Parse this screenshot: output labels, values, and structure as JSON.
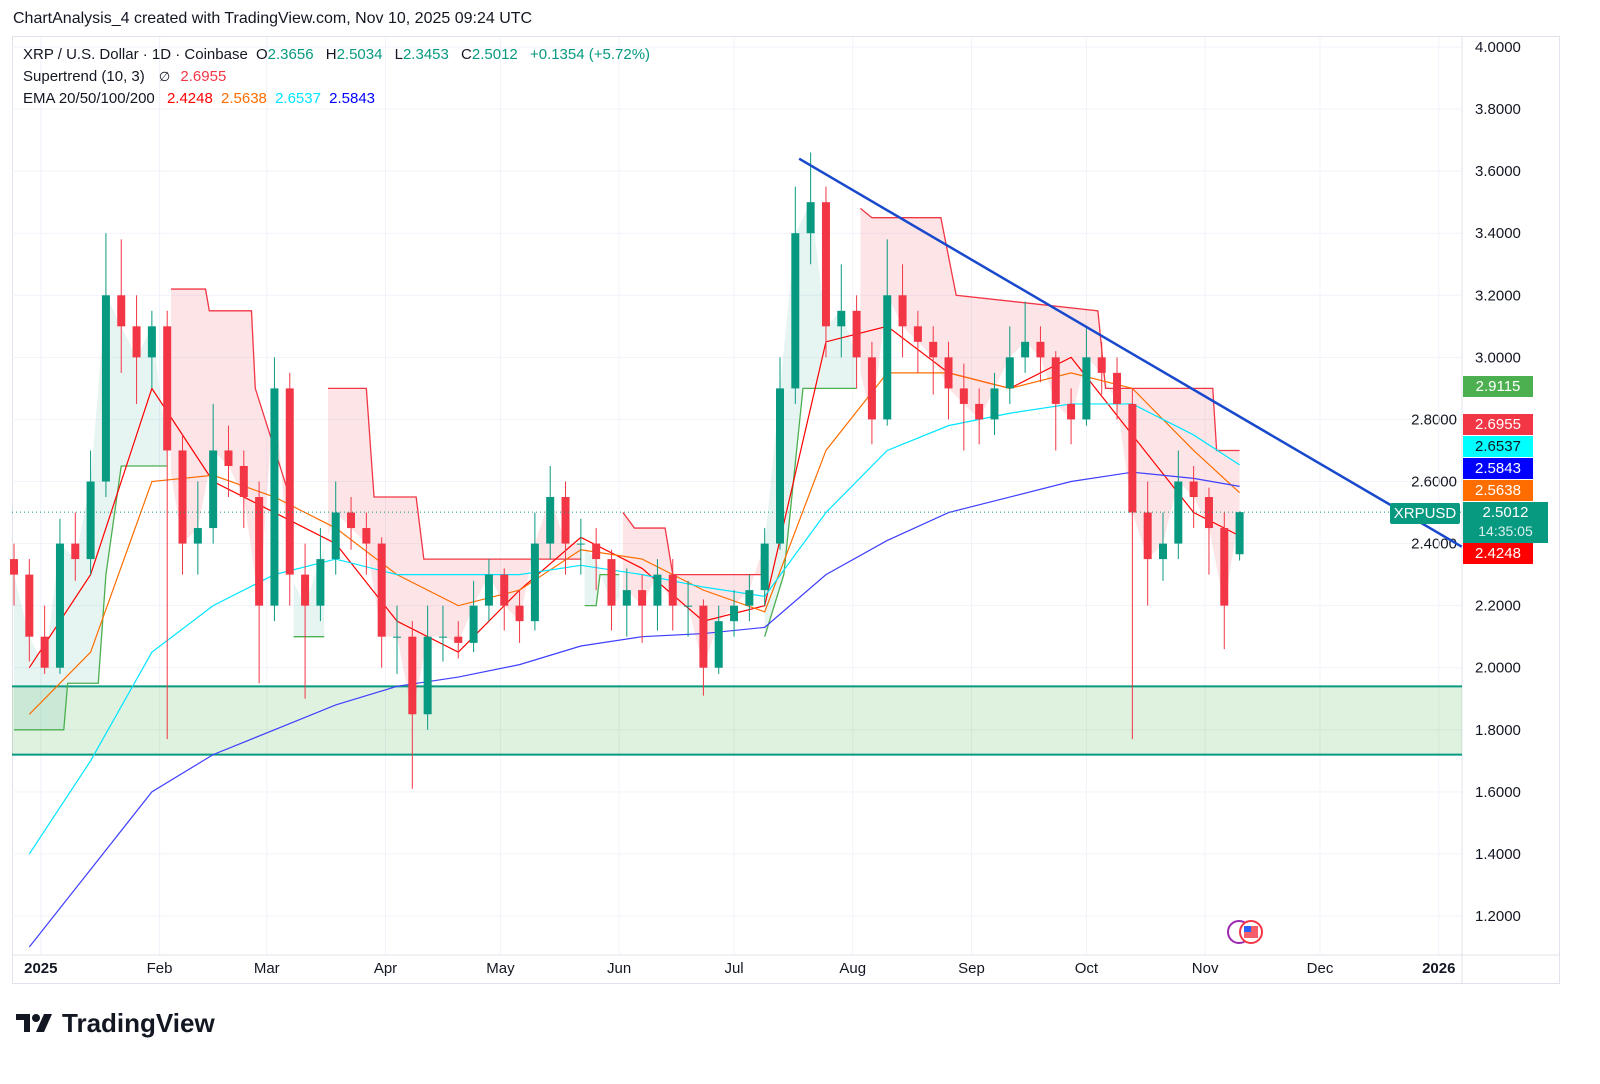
{
  "caption": "ChartAnalysis_4 created with TradingView.com, Nov 10, 2025 09:24 UTC",
  "legend": {
    "symbol": "XRP / U.S. Dollar · 1D · Coinbase",
    "o_label": "O",
    "o": "2.3656",
    "h_label": "H",
    "h": "2.5034",
    "l_label": "L",
    "l": "2.3453",
    "c_label": "C",
    "c": "2.5012",
    "change": "+0.1354 (+5.72%)",
    "supertrend_label": "Supertrend (10, 3)",
    "supertrend_icon": "∅",
    "supertrend_value": "2.6955",
    "ema_label": "EMA 20/50/100/200",
    "ema20": "2.4248",
    "ema50": "2.5638",
    "ema100": "2.6537",
    "ema200": "2.5843"
  },
  "badges": [
    {
      "value": "2.9115",
      "color": "#4caf50",
      "text_color": "#ffffff"
    },
    {
      "value": "2.6955",
      "color": "#f23645",
      "text_color": "#ffffff"
    },
    {
      "value": "2.6537",
      "color": "#00ffff",
      "text_color": "#131722"
    },
    {
      "value": "2.5843",
      "color": "#0000ff",
      "text_color": "#ffffff"
    },
    {
      "value": "2.5638",
      "color": "#ff6d00",
      "text_color": "#ffffff"
    },
    {
      "value": "2.5012",
      "countdown": "14:35:05",
      "color": "#089981",
      "text_color": "#ffffff"
    },
    {
      "value": "2.4248",
      "color": "#ff0000",
      "text_color": "#ffffff"
    }
  ],
  "symbol_label": "XRPUSD",
  "logo_text": "TradingView",
  "chart_data": {
    "type": "candlestick",
    "title": "XRP / U.S. Dollar · 1D · Coinbase",
    "start_date": "2024-12-25",
    "candle_interval_days": 4,
    "ylim": [
      1.1,
      4.05
    ],
    "y_ticks": [
      "1.2000",
      "1.4000",
      "1.6000",
      "1.8000",
      "2.0000",
      "2.2000",
      "2.4000",
      "2.6000",
      "2.8000",
      "3.0000",
      "3.2000",
      "3.4000",
      "3.6000",
      "3.8000",
      "4.0000"
    ],
    "x_ticks": [
      {
        "label": "2025",
        "day": 7,
        "bold": true
      },
      {
        "label": "Feb",
        "day": 38
      },
      {
        "label": "Mar",
        "day": 66
      },
      {
        "label": "Apr",
        "day": 97
      },
      {
        "label": "May",
        "day": 127
      },
      {
        "label": "Jun",
        "day": 158
      },
      {
        "label": "Jul",
        "day": 188
      },
      {
        "label": "Aug",
        "day": 219
      },
      {
        "label": "Sep",
        "day": 250
      },
      {
        "label": "Oct",
        "day": 280
      },
      {
        "label": "Nov",
        "day": 311
      },
      {
        "label": "Dec",
        "day": 341
      },
      {
        "label": "2026",
        "day": 372,
        "bold": true
      }
    ],
    "x_max_day": 378,
    "candles": [
      [
        2.35,
        2.4,
        2.2,
        2.3
      ],
      [
        2.3,
        2.35,
        2.02,
        2.1
      ],
      [
        2.1,
        2.2,
        1.98,
        2.0
      ],
      [
        2.0,
        2.48,
        1.98,
        2.4
      ],
      [
        2.4,
        2.5,
        2.28,
        2.35
      ],
      [
        2.35,
        2.7,
        2.3,
        2.6
      ],
      [
        2.6,
        3.4,
        2.55,
        3.2
      ],
      [
        3.2,
        3.38,
        2.95,
        3.1
      ],
      [
        3.1,
        3.2,
        2.85,
        3.0
      ],
      [
        3.0,
        3.15,
        2.9,
        3.1
      ],
      [
        3.1,
        3.15,
        1.77,
        2.7
      ],
      [
        2.7,
        2.75,
        2.3,
        2.4
      ],
      [
        2.4,
        2.6,
        2.3,
        2.45
      ],
      [
        2.45,
        2.85,
        2.4,
        2.7
      ],
      [
        2.7,
        2.78,
        2.55,
        2.65
      ],
      [
        2.65,
        2.7,
        2.45,
        2.55
      ],
      [
        2.55,
        2.6,
        1.95,
        2.2
      ],
      [
        2.2,
        3.0,
        2.15,
        2.9
      ],
      [
        2.9,
        2.95,
        2.2,
        2.3
      ],
      [
        2.3,
        2.4,
        1.9,
        2.2
      ],
      [
        2.2,
        2.45,
        2.15,
        2.35
      ],
      [
        2.35,
        2.6,
        2.3,
        2.5
      ],
      [
        2.5,
        2.55,
        2.38,
        2.45
      ],
      [
        2.45,
        2.5,
        2.3,
        2.4
      ],
      [
        2.4,
        2.42,
        2.0,
        2.1
      ],
      [
        2.1,
        2.2,
        1.98,
        2.1
      ],
      [
        2.1,
        2.15,
        1.61,
        1.85
      ],
      [
        1.85,
        2.2,
        1.8,
        2.1
      ],
      [
        2.1,
        2.2,
        2.02,
        2.1
      ],
      [
        2.1,
        2.15,
        2.03,
        2.08
      ],
      [
        2.08,
        2.28,
        2.05,
        2.2
      ],
      [
        2.2,
        2.35,
        2.15,
        2.3
      ],
      [
        2.3,
        2.32,
        2.12,
        2.2
      ],
      [
        2.2,
        2.25,
        2.08,
        2.15
      ],
      [
        2.15,
        2.5,
        2.12,
        2.4
      ],
      [
        2.4,
        2.65,
        2.35,
        2.55
      ],
      [
        2.55,
        2.6,
        2.3,
        2.4
      ],
      [
        2.4,
        2.48,
        2.3,
        2.4
      ],
      [
        2.4,
        2.45,
        2.25,
        2.35
      ],
      [
        2.35,
        2.38,
        2.12,
        2.2
      ],
      [
        2.2,
        2.32,
        2.1,
        2.25
      ],
      [
        2.25,
        2.3,
        2.08,
        2.2
      ],
      [
        2.2,
        2.35,
        2.12,
        2.3
      ],
      [
        2.3,
        2.35,
        2.12,
        2.2
      ],
      [
        2.2,
        2.28,
        2.1,
        2.2
      ],
      [
        2.2,
        2.22,
        1.91,
        2.0
      ],
      [
        2.0,
        2.2,
        1.98,
        2.15
      ],
      [
        2.15,
        2.25,
        2.1,
        2.2
      ],
      [
        2.2,
        2.3,
        2.15,
        2.25
      ],
      [
        2.25,
        2.45,
        2.2,
        2.4
      ],
      [
        2.4,
        3.0,
        2.38,
        2.9
      ],
      [
        2.9,
        3.55,
        2.85,
        3.4
      ],
      [
        3.4,
        3.66,
        3.3,
        3.5
      ],
      [
        3.5,
        3.55,
        3.0,
        3.1
      ],
      [
        3.1,
        3.3,
        3.0,
        3.15
      ],
      [
        3.15,
        3.2,
        2.9,
        3.0
      ],
      [
        3.0,
        3.05,
        2.72,
        2.8
      ],
      [
        2.8,
        3.38,
        2.78,
        3.2
      ],
      [
        3.2,
        3.3,
        3.0,
        3.1
      ],
      [
        3.1,
        3.15,
        2.95,
        3.05
      ],
      [
        3.05,
        3.1,
        2.88,
        3.0
      ],
      [
        3.0,
        3.05,
        2.8,
        2.9
      ],
      [
        2.9,
        2.98,
        2.7,
        2.85
      ],
      [
        2.85,
        2.9,
        2.72,
        2.8
      ],
      [
        2.8,
        2.95,
        2.75,
        2.9
      ],
      [
        2.9,
        3.1,
        2.85,
        3.0
      ],
      [
        3.0,
        3.18,
        2.95,
        3.05
      ],
      [
        3.05,
        3.1,
        2.92,
        3.0
      ],
      [
        3.0,
        3.02,
        2.7,
        2.85
      ],
      [
        2.85,
        2.9,
        2.72,
        2.8
      ],
      [
        2.8,
        3.1,
        2.78,
        3.0
      ],
      [
        3.0,
        3.05,
        2.88,
        2.95
      ],
      [
        2.95,
        3.0,
        2.8,
        2.85
      ],
      [
        2.85,
        2.9,
        1.77,
        2.5
      ],
      [
        2.5,
        2.6,
        2.2,
        2.35
      ],
      [
        2.35,
        2.5,
        2.28,
        2.4
      ],
      [
        2.4,
        2.7,
        2.35,
        2.6
      ],
      [
        2.6,
        2.65,
        2.45,
        2.55
      ],
      [
        2.55,
        2.58,
        2.3,
        2.45
      ],
      [
        2.45,
        2.5,
        2.06,
        2.2
      ],
      [
        2.3656,
        2.5034,
        2.3453,
        2.5012
      ]
    ],
    "ema_sample_days": [
      4,
      20,
      36,
      52,
      68,
      84,
      100,
      116,
      132,
      148,
      164,
      180,
      196,
      212,
      228,
      244,
      260,
      276,
      292,
      308,
      320
    ],
    "ema": [
      {
        "name": "EMA 20",
        "color": "#ff0000",
        "values": [
          2.0,
          2.3,
          2.9,
          2.6,
          2.5,
          2.4,
          2.15,
          2.05,
          2.25,
          2.42,
          2.32,
          2.15,
          2.2,
          3.05,
          3.1,
          2.95,
          2.9,
          3.0,
          2.75,
          2.5,
          2.4248
        ]
      },
      {
        "name": "EMA 50",
        "color": "#ff6d00",
        "values": [
          1.85,
          2.05,
          2.6,
          2.62,
          2.55,
          2.45,
          2.3,
          2.2,
          2.25,
          2.38,
          2.35,
          2.25,
          2.18,
          2.7,
          2.95,
          2.95,
          2.9,
          2.95,
          2.9,
          2.7,
          2.5638
        ]
      },
      {
        "name": "EMA 100",
        "color": "#00e5ff",
        "values": [
          1.4,
          1.7,
          2.05,
          2.2,
          2.3,
          2.35,
          2.3,
          2.3,
          2.3,
          2.33,
          2.3,
          2.26,
          2.23,
          2.5,
          2.7,
          2.78,
          2.82,
          2.85,
          2.85,
          2.75,
          2.6537
        ]
      },
      {
        "name": "EMA 200",
        "color": "#3f3fff",
        "values": [
          1.1,
          1.35,
          1.6,
          1.72,
          1.8,
          1.88,
          1.94,
          1.97,
          2.01,
          2.07,
          2.1,
          2.11,
          2.13,
          2.3,
          2.41,
          2.5,
          2.55,
          2.6,
          2.63,
          2.61,
          2.5843
        ]
      }
    ],
    "supertrend": [
      {
        "dir": "up",
        "points": [
          [
            0,
            1.8
          ],
          [
            13,
            1.8
          ],
          [
            14,
            1.95
          ],
          [
            22,
            1.95
          ],
          [
            24,
            2.3
          ],
          [
            28,
            2.65
          ],
          [
            40,
            2.65
          ]
        ]
      },
      {
        "dir": "down",
        "points": [
          [
            41,
            3.22
          ],
          [
            50,
            3.22
          ],
          [
            51,
            3.15
          ],
          [
            62,
            3.15
          ],
          [
            63,
            2.9
          ],
          [
            72,
            2.55
          ]
        ]
      },
      {
        "dir": "up",
        "points": [
          [
            73,
            2.1
          ],
          [
            81,
            2.1
          ]
        ]
      },
      {
        "dir": "down",
        "points": [
          [
            82,
            2.9
          ],
          [
            92,
            2.9
          ],
          [
            94,
            2.55
          ],
          [
            105,
            2.55
          ],
          [
            107,
            2.35
          ],
          [
            148,
            2.35
          ]
        ]
      },
      {
        "dir": "up",
        "points": [
          [
            149,
            2.2
          ],
          [
            152,
            2.2
          ],
          [
            153,
            2.3
          ],
          [
            158,
            2.3
          ]
        ]
      },
      {
        "dir": "down",
        "points": [
          [
            159,
            2.5
          ],
          [
            162,
            2.45
          ],
          [
            170,
            2.45
          ],
          [
            172,
            2.3
          ],
          [
            196,
            2.3
          ]
        ]
      },
      {
        "dir": "up",
        "points": [
          [
            196,
            2.1
          ],
          [
            201,
            2.3
          ],
          [
            206,
            2.9
          ],
          [
            220,
            2.9
          ]
        ]
      },
      {
        "dir": "down",
        "points": [
          [
            221,
            3.48
          ],
          [
            224,
            3.45
          ],
          [
            242,
            3.45
          ],
          [
            246,
            3.2
          ],
          [
            283,
            3.15
          ],
          [
            285,
            2.9
          ],
          [
            313,
            2.9
          ],
          [
            314,
            2.7
          ],
          [
            320,
            2.7
          ]
        ]
      }
    ],
    "support_zone": [
      1.72,
      1.94
    ],
    "trendline": {
      "from": [
        205,
        3.64
      ],
      "to": [
        378,
        2.39
      ],
      "color": "#1848cc"
    },
    "last_price": 2.5012
  }
}
